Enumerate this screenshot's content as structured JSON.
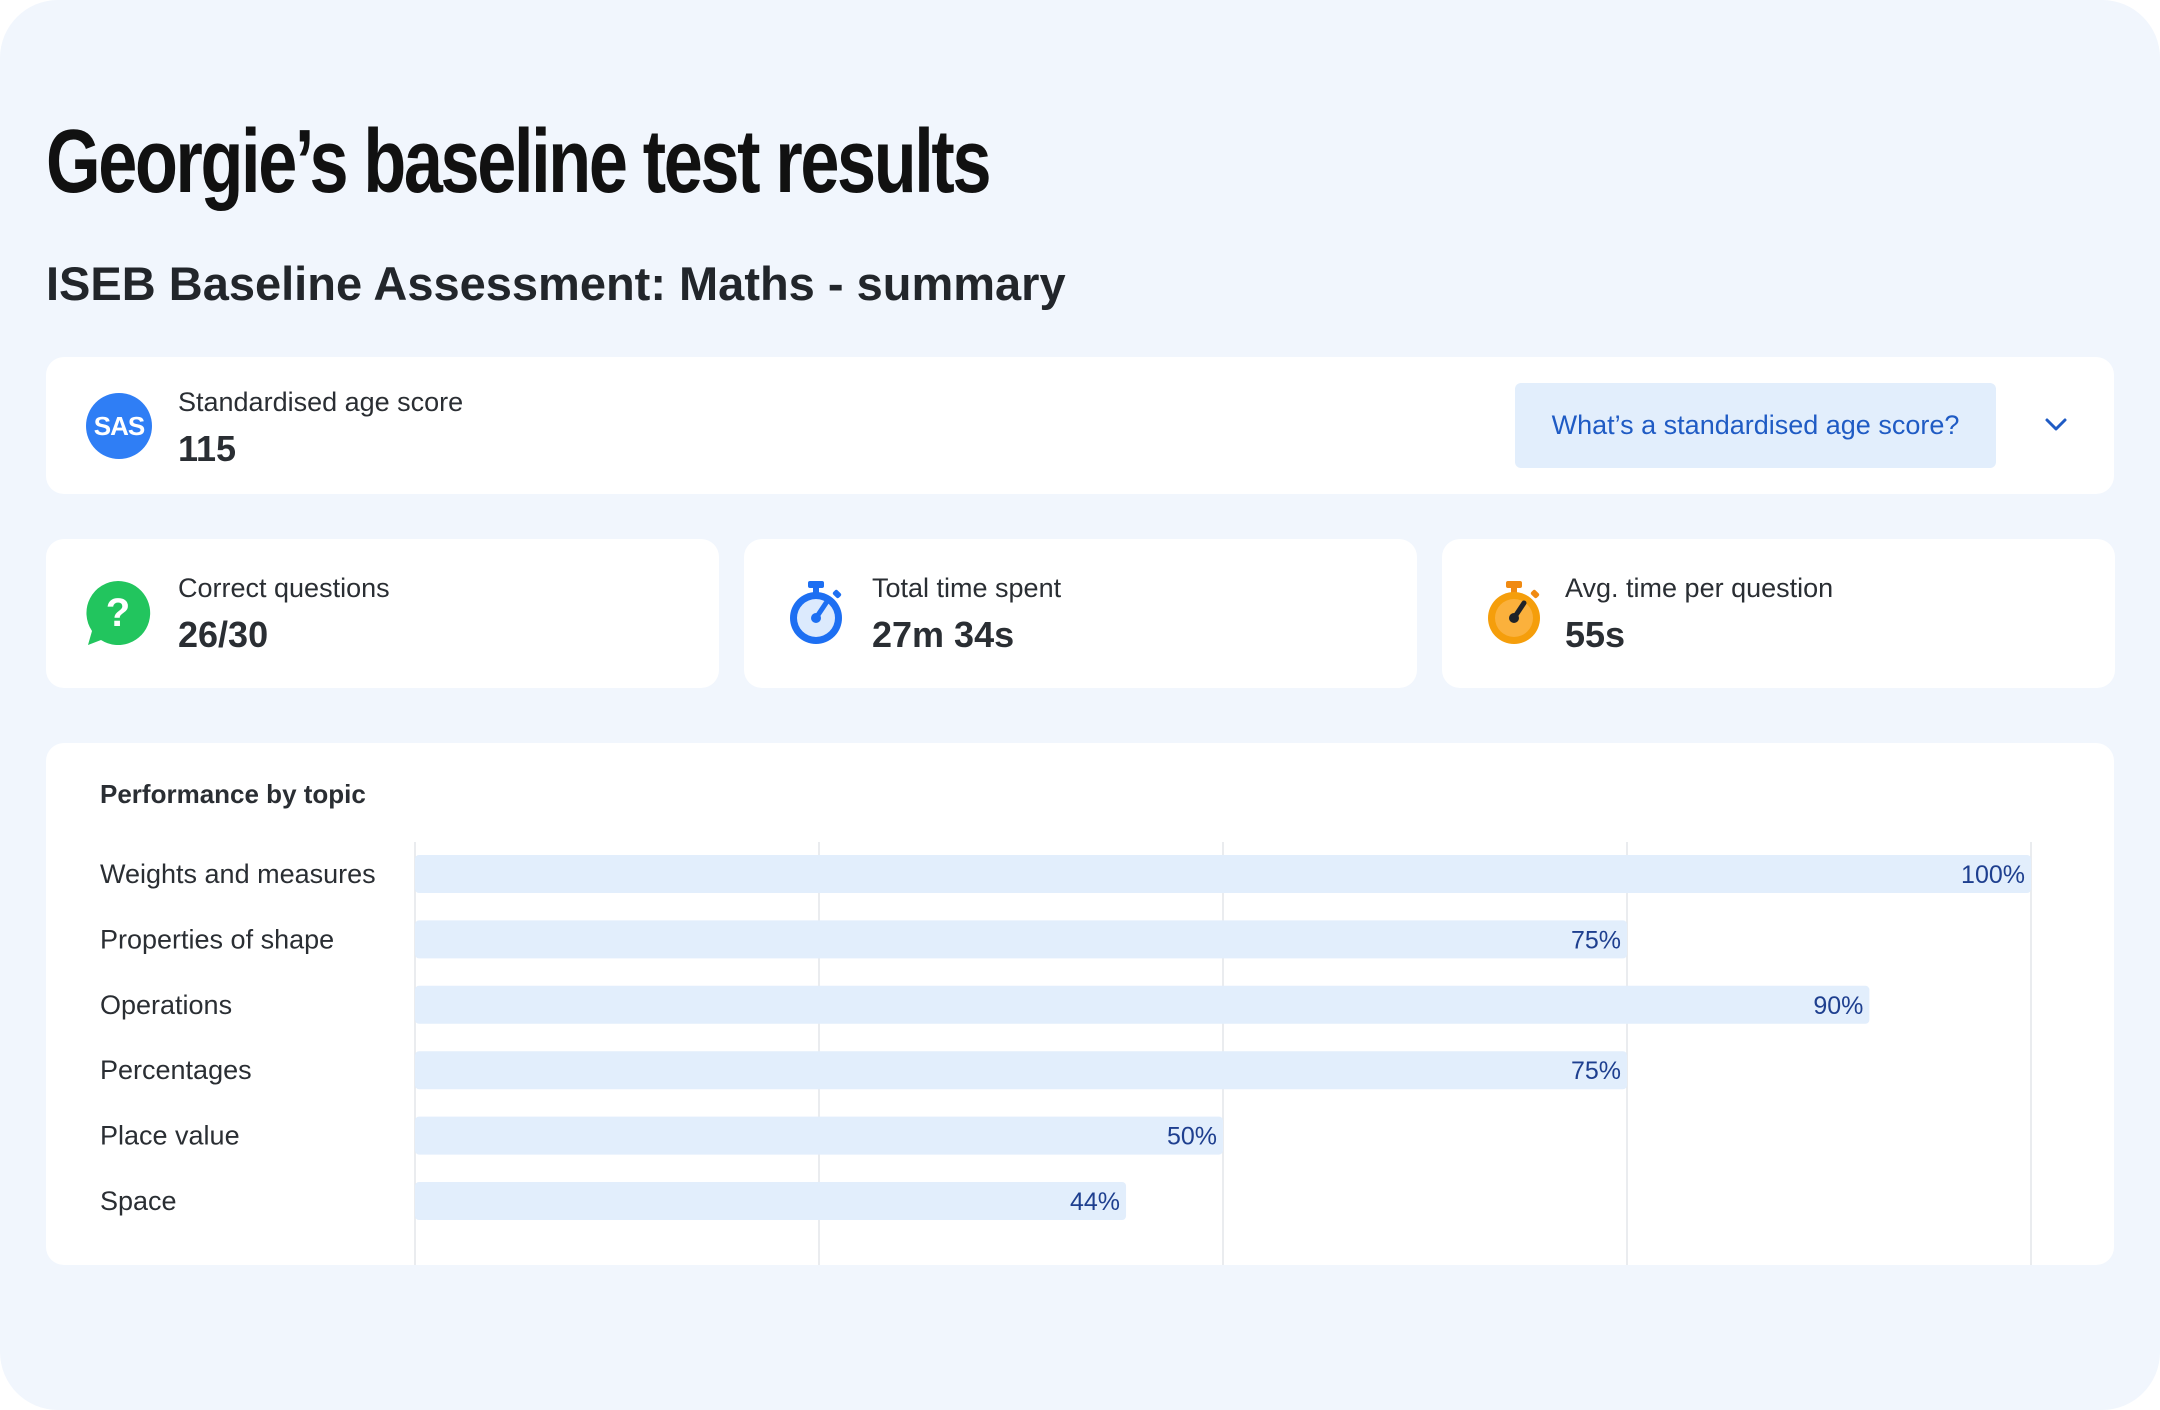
{
  "page": {
    "title": "Georgie’s baseline test results",
    "subtitle": "ISEB Baseline Assessment: Maths - summary"
  },
  "sas": {
    "badge": "SAS",
    "label": "Standardised age score",
    "value": "115",
    "help_label": "What’s a standardised age score?",
    "chevron_icon": "chevron-down-icon"
  },
  "stats": [
    {
      "label": "Correct questions",
      "value": "26/30",
      "icon": "question-bubble-icon",
      "color": "#22c55e"
    },
    {
      "label": "Total time spent",
      "value": "27m 34s",
      "icon": "stopwatch-icon",
      "color": "#1d6ff2"
    },
    {
      "label": "Avg. time per question",
      "value": "55s",
      "icon": "stopwatch-icon",
      "color": "#f59e0b"
    }
  ],
  "colors": {
    "background": "#f1f6fd",
    "bar_fill": "#e2eefc",
    "bar_label": "#1e3f8f",
    "accent": "#2f7ef5"
  },
  "chart_data": {
    "type": "bar",
    "orientation": "horizontal",
    "title": "Performance by topic",
    "categories": [
      "Weights and measures",
      "Properties of shape",
      "Operations",
      "Percentages",
      "Place value",
      "Space"
    ],
    "values": [
      100,
      75,
      90,
      75,
      50,
      44
    ],
    "labels": [
      "100%",
      "75%",
      "90%",
      "75%",
      "50%",
      "44%"
    ],
    "xlim": [
      0,
      100
    ],
    "grid": true,
    "xlabel": "",
    "ylabel": ""
  }
}
